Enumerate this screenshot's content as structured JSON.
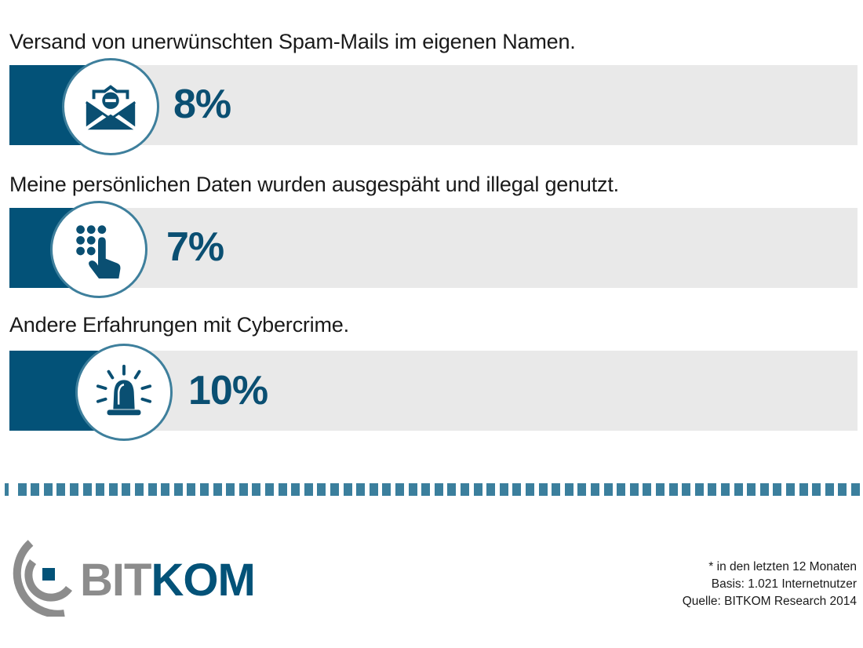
{
  "chart_data": {
    "type": "bar",
    "orientation": "horizontal",
    "title": "",
    "categories": [
      "Versand von unerwünschten Spam-Mails im eigenen Namen.",
      "Meine persönlichen Daten wurden ausgespäht und illegal genutzt.",
      "Andere Erfahrungen mit Cybercrime."
    ],
    "values": [
      8,
      7,
      10
    ],
    "value_labels": [
      "8%",
      "7%",
      "10%"
    ],
    "icons": [
      "envelope-minus-icon",
      "keypad-hand-icon",
      "alarm-siren-icon"
    ],
    "unit": "%",
    "xlim": [
      0,
      100
    ],
    "xlabel": "",
    "ylabel": "",
    "grid": false,
    "legend": "none"
  },
  "colors": {
    "bar_fill": "#035278",
    "bar_track": "#e9e9e9",
    "circle_border": "#3e7f9c",
    "value_text": "#0a4f72",
    "dashes": "#3b7f9d",
    "logo_gray": "#8c8c8c",
    "logo_blue": "#035278"
  },
  "brand": {
    "name_part1": "BIT",
    "name_part2": "KOM"
  },
  "footnote": {
    "line1": "* in den letzten 12 Monaten",
    "line2": "Basis: 1.021 Internetnutzer",
    "line3": "Quelle: BITKOM Research 2014"
  }
}
